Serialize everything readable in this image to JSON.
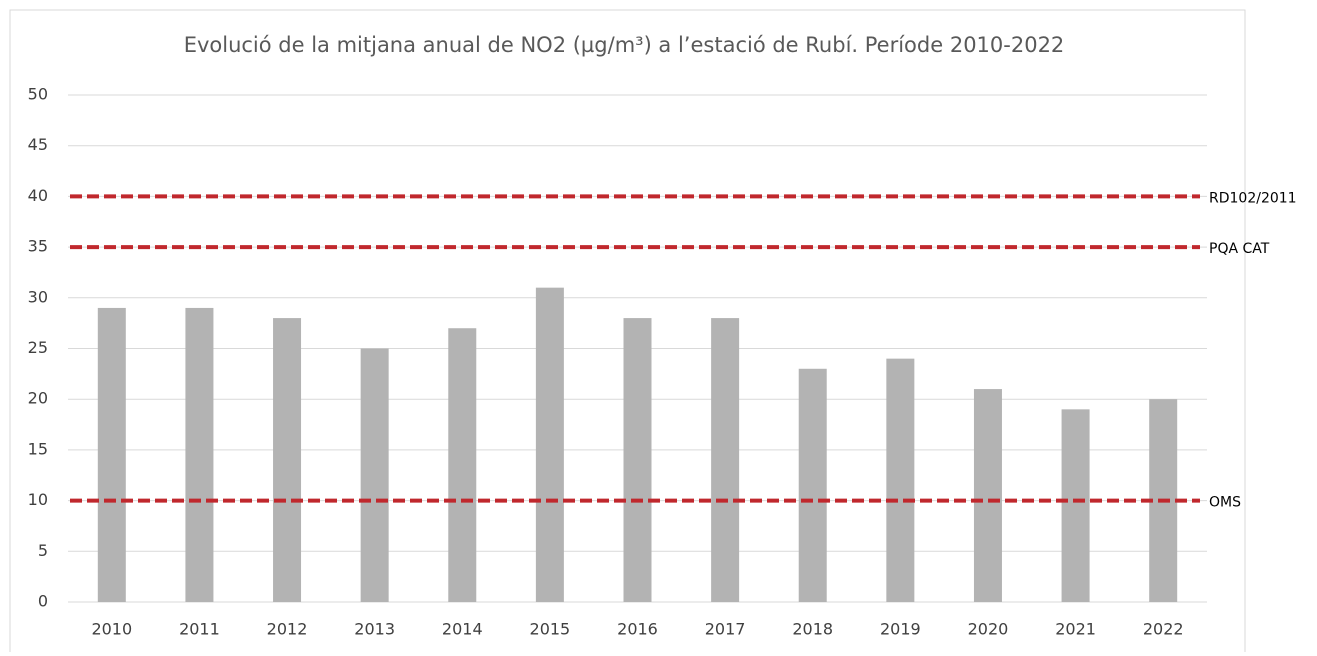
{
  "chart_data": {
    "type": "bar",
    "title": "Evolució de la mitjana anual de NO2 (µg/m³) a l’estació de Rubí. Període 2010-2022",
    "categories": [
      "2010",
      "2011",
      "2012",
      "2013",
      "2014",
      "2015",
      "2016",
      "2017",
      "2018",
      "2019",
      "2020",
      "2021",
      "2022"
    ],
    "values": [
      29,
      29,
      28,
      25,
      27,
      31,
      28,
      28,
      23,
      24,
      21,
      19,
      20
    ],
    "color": "#b3b3b3",
    "ylim": [
      0,
      50
    ],
    "yticks": [
      0,
      5,
      10,
      15,
      20,
      25,
      30,
      35,
      40,
      45,
      50
    ],
    "grid": true,
    "reference_lines": [
      {
        "value": 40,
        "label": "RD102/2011",
        "color": "#c0282d"
      },
      {
        "value": 35,
        "label": "PQA CAT",
        "color": "#c0282d"
      },
      {
        "value": 10,
        "label": "OMS",
        "color": "#c0282d"
      }
    ]
  }
}
